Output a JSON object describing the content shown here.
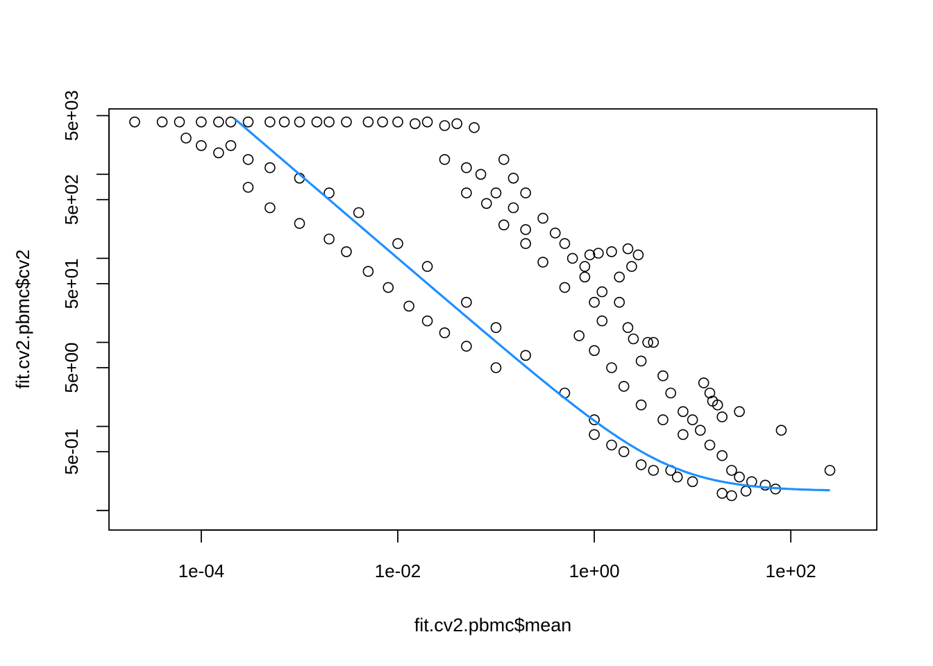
{
  "chart_data": {
    "type": "scatter",
    "title": "",
    "xlabel": "fit.cv2.pbmc$mean",
    "ylabel": "fit.cv2.pbmc$cv2",
    "x_scale": "log",
    "y_scale": "log",
    "xlim": [
      1.15e-05,
      750
    ],
    "ylim": [
      0.0585,
      6000
    ],
    "x_ticks": [
      {
        "value": 0.0001,
        "label": "1e-04"
      },
      {
        "value": 0.01,
        "label": "1e-02"
      },
      {
        "value": 1,
        "label": "1e+00"
      },
      {
        "value": 100,
        "label": "1e+02"
      }
    ],
    "y_ticks": [
      {
        "value": 0.1,
        "label": ""
      },
      {
        "value": 0.5,
        "label": "5e-01"
      },
      {
        "value": 1,
        "label": ""
      },
      {
        "value": 5,
        "label": "5e+00"
      },
      {
        "value": 10,
        "label": ""
      },
      {
        "value": 50,
        "label": "5e+01"
      },
      {
        "value": 100,
        "label": ""
      },
      {
        "value": 500,
        "label": "5e+02"
      },
      {
        "value": 1000,
        "label": ""
      },
      {
        "value": 5000,
        "label": "5e+03"
      }
    ],
    "grid": false,
    "series": [
      {
        "kind": "points",
        "marker": "open-circle",
        "color": "#000000",
        "points": [
          [
            2.1e-05,
            4200
          ],
          [
            4e-05,
            4200
          ],
          [
            6e-05,
            4200
          ],
          [
            0.0001,
            4200
          ],
          [
            0.00015,
            4200
          ],
          [
            0.0002,
            4200
          ],
          [
            0.0003,
            4200
          ],
          [
            0.0005,
            4200
          ],
          [
            0.0007,
            4200
          ],
          [
            0.001,
            4200
          ],
          [
            0.0015,
            4200
          ],
          [
            0.002,
            4200
          ],
          [
            0.003,
            4200
          ],
          [
            0.005,
            4200
          ],
          [
            0.007,
            4200
          ],
          [
            7e-05,
            2700
          ],
          [
            0.0001,
            2200
          ],
          [
            0.00015,
            1800
          ],
          [
            0.0002,
            2200
          ],
          [
            0.0003,
            1500
          ],
          [
            0.0005,
            1200
          ],
          [
            0.001,
            900
          ],
          [
            0.002,
            600
          ],
          [
            0.004,
            350
          ],
          [
            0.01,
            150
          ],
          [
            0.02,
            80
          ],
          [
            0.05,
            30
          ],
          [
            0.1,
            15
          ],
          [
            0.2,
            7
          ],
          [
            0.5,
            2.5
          ],
          [
            1,
            1.2
          ],
          [
            0.0003,
            700
          ],
          [
            0.0005,
            400
          ],
          [
            0.001,
            260
          ],
          [
            0.002,
            170
          ],
          [
            0.003,
            120
          ],
          [
            0.005,
            70
          ],
          [
            0.008,
            45
          ],
          [
            0.013,
            27
          ],
          [
            0.02,
            18
          ],
          [
            0.03,
            13
          ],
          [
            0.05,
            9
          ],
          [
            0.1,
            5
          ],
          [
            0.01,
            4200
          ],
          [
            0.015,
            4000
          ],
          [
            0.02,
            4200
          ],
          [
            0.03,
            3800
          ],
          [
            0.04,
            4000
          ],
          [
            0.06,
            3600
          ],
          [
            0.03,
            1500
          ],
          [
            0.05,
            1200
          ],
          [
            0.07,
            1000
          ],
          [
            0.1,
            600
          ],
          [
            0.15,
            400
          ],
          [
            0.2,
            220
          ],
          [
            0.05,
            600
          ],
          [
            0.08,
            450
          ],
          [
            0.12,
            250
          ],
          [
            0.2,
            150
          ],
          [
            0.3,
            90
          ],
          [
            0.5,
            45
          ],
          [
            0.12,
            1500
          ],
          [
            0.15,
            900
          ],
          [
            0.2,
            600
          ],
          [
            0.3,
            300
          ],
          [
            0.5,
            150
          ],
          [
            0.8,
            80
          ],
          [
            1.2,
            40
          ],
          [
            0.4,
            200
          ],
          [
            0.6,
            100
          ],
          [
            0.8,
            60
          ],
          [
            1,
            30
          ],
          [
            1.2,
            18
          ],
          [
            0.7,
            12
          ],
          [
            1,
            8
          ],
          [
            1.5,
            5
          ],
          [
            2,
            3
          ],
          [
            3,
            1.8
          ],
          [
            5,
            1.2
          ],
          [
            8,
            0.8
          ],
          [
            0.9,
            110
          ],
          [
            1.1,
            115
          ],
          [
            1.5,
            120
          ],
          [
            2.2,
            130
          ],
          [
            2.8,
            110
          ],
          [
            2.4,
            80
          ],
          [
            1.8,
            60
          ],
          [
            2.2,
            15
          ],
          [
            2.5,
            11
          ],
          [
            3.5,
            10
          ],
          [
            4,
            10
          ],
          [
            1.8,
            30
          ],
          [
            3,
            6
          ],
          [
            5,
            4
          ],
          [
            6,
            2.5
          ],
          [
            8,
            1.5
          ],
          [
            10,
            1.2
          ],
          [
            12,
            0.9
          ],
          [
            15,
            0.6
          ],
          [
            20,
            0.45
          ],
          [
            25,
            0.3
          ],
          [
            30,
            0.25
          ],
          [
            40,
            0.22
          ],
          [
            55,
            0.2
          ],
          [
            70,
            0.18
          ],
          [
            20,
            0.16
          ],
          [
            25,
            0.15
          ],
          [
            35,
            0.17
          ],
          [
            13,
            3.3
          ],
          [
            15,
            2.5
          ],
          [
            18,
            1.8
          ],
          [
            16,
            2
          ],
          [
            20,
            1.3
          ],
          [
            30,
            1.5
          ],
          [
            80,
            0.9
          ],
          [
            250,
            0.3
          ],
          [
            1,
            0.8
          ],
          [
            1.5,
            0.6
          ],
          [
            2,
            0.5
          ],
          [
            3,
            0.35
          ],
          [
            4,
            0.3
          ],
          [
            6,
            0.3
          ],
          [
            7,
            0.25
          ],
          [
            10,
            0.22
          ]
        ]
      },
      {
        "kind": "line",
        "name": "",
        "color": "#1e90ff",
        "formula": "1/x + 0.17",
        "x_range": [
          0.00022,
          250
        ]
      }
    ]
  }
}
